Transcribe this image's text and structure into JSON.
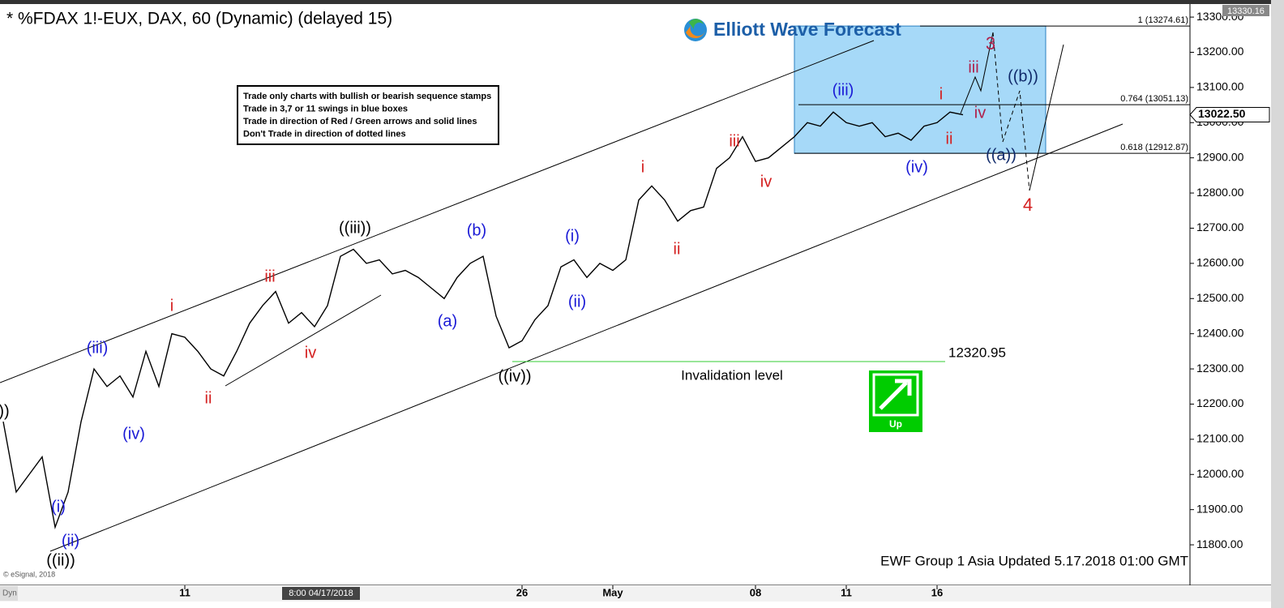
{
  "chart_data": {
    "type": "line",
    "title": "* %FDAX 1!-EUX, DAX, 60 (Dynamic) (delayed 15)",
    "logo": "Elliott Wave Forecast",
    "footer": "EWF Group 1 Asia Updated 5.17.2018 01:00 GMT",
    "copyright": "© eSignal, 2018",
    "corner_label": "Dyn",
    "crosshair_label": "8:00 04/17/2018",
    "notes": [
      "Trade only charts with bullish or bearish sequence stamps",
      "Trade in 3,7 or 11 swings in blue boxes",
      "Trade in direction of Red / Green arrows and solid lines",
      "Don't Trade in direction of dotted lines"
    ],
    "categories": [
      null,
      null,
      null,
      null,
      null,
      null,
      null,
      null,
      null,
      null,
      null,
      null,
      null,
      null,
      "11",
      null,
      null,
      null,
      null,
      null,
      null,
      null,
      null,
      null,
      null,
      null,
      null,
      null,
      null,
      null,
      null,
      null,
      null,
      null,
      null,
      null,
      null,
      null,
      null,
      null,
      "26",
      null,
      null,
      null,
      null,
      null,
      null,
      "May",
      null,
      null,
      null,
      null,
      null,
      null,
      null,
      null,
      null,
      null,
      "08",
      null,
      null,
      null,
      null,
      null,
      null,
      "11",
      null,
      null,
      null,
      null,
      null,
      null,
      "16",
      null,
      null
    ],
    "values": [
      12150,
      11950,
      12000,
      12050,
      11850,
      11950,
      12150,
      12300,
      12250,
      12280,
      12220,
      12350,
      12250,
      12400,
      12390,
      12350,
      12300,
      12280,
      12350,
      12430,
      12480,
      12520,
      12430,
      12460,
      12420,
      12480,
      12620,
      12640,
      12600,
      12610,
      12570,
      12580,
      12560,
      12530,
      12500,
      12560,
      12600,
      12620,
      12450,
      12360,
      12380,
      12440,
      12480,
      12590,
      12610,
      12560,
      12600,
      12580,
      12610,
      12780,
      12820,
      12780,
      12720,
      12750,
      12760,
      12870,
      12900,
      12960,
      12890,
      12900,
      12930,
      12960,
      13000,
      12990,
      13030,
      13000,
      12990,
      13000,
      12960,
      12970,
      12950,
      12990,
      13000,
      13030,
      13022.5
    ],
    "color": "#000000",
    "last_price": {
      "value": 13022.5,
      "label": "13022.50"
    },
    "ylim": [
      11678,
      13330.16
    ],
    "yticks": [
      {
        "value": 11800,
        "label": "11800.00"
      },
      {
        "value": 11900,
        "label": "11900.00"
      },
      {
        "value": 12000,
        "label": "12000.00"
      },
      {
        "value": 12100,
        "label": "12100.00"
      },
      {
        "value": 12200,
        "label": "12200.00"
      },
      {
        "value": 12300,
        "label": "12300.00"
      },
      {
        "value": 12400,
        "label": "12400.00"
      },
      {
        "value": 12500,
        "label": "12500.00"
      },
      {
        "value": 12600,
        "label": "12600.00"
      },
      {
        "value": 12700,
        "label": "12700.00"
      },
      {
        "value": 12800,
        "label": "12800.00"
      },
      {
        "value": 12900,
        "label": "12900.00"
      },
      {
        "value": 13000,
        "label": "13000.00"
      },
      {
        "value": 13100,
        "label": "13100.00"
      },
      {
        "value": 13200,
        "label": "13200.00"
      },
      {
        "value": 13300,
        "label": "13300.00"
      }
    ],
    "fib_levels": [
      {
        "value": 13274.61,
        "label": "1 (13274.61)"
      },
      {
        "value": 13051.13,
        "label": "0.764 (13051.13)"
      },
      {
        "value": 12912.87,
        "label": "0.618 (12912.87)"
      }
    ],
    "invalidation": {
      "value": 12320.95,
      "text": "Invalidation level"
    },
    "signal": {
      "text": "Up",
      "color": "#00cc00"
    },
    "wave_labels": [
      {
        "text": "))",
        "color": "#000000"
      },
      {
        "text": "((ii))",
        "color": "#000000"
      },
      {
        "text": "((iii))",
        "color": "#000000"
      },
      {
        "text": "((iv))",
        "color": "#000000"
      },
      {
        "text": "(i)",
        "color": "#1a1ad6"
      },
      {
        "text": "(ii)",
        "color": "#1a1ad6"
      },
      {
        "text": "(iii)",
        "color": "#1a1ad6"
      },
      {
        "text": "(iv)",
        "color": "#1a1ad6"
      },
      {
        "text": "(a)",
        "color": "#1a1ad6"
      },
      {
        "text": "(b)",
        "color": "#1a1ad6"
      },
      {
        "text": "(i)",
        "color": "#1a1ad6"
      },
      {
        "text": "(ii)",
        "color": "#1a1ad6"
      },
      {
        "text": "(iii)",
        "color": "#1a1ad6"
      },
      {
        "text": "(iv)",
        "color": "#1a1ad6"
      },
      {
        "text": "((a))",
        "color": "#102a6b"
      },
      {
        "text": "((b))",
        "color": "#102a6b"
      },
      {
        "text": "i",
        "color": "#d42020"
      },
      {
        "text": "ii",
        "color": "#d42020"
      },
      {
        "text": "iii",
        "color": "#d42020"
      },
      {
        "text": "iv",
        "color": "#d42020"
      },
      {
        "text": "i",
        "color": "#d42020"
      },
      {
        "text": "ii",
        "color": "#d42020"
      },
      {
        "text": "iii",
        "color": "#d42020"
      },
      {
        "text": "iv",
        "color": "#d42020"
      },
      {
        "text": "i",
        "color": "#d42020"
      },
      {
        "text": "ii",
        "color": "#d42020"
      },
      {
        "text": "4",
        "color": "#d42020"
      },
      {
        "text": "iii",
        "color": "#b0204a"
      },
      {
        "text": "iv",
        "color": "#b0204a"
      },
      {
        "text": "3",
        "color": "#b0204a"
      }
    ]
  }
}
